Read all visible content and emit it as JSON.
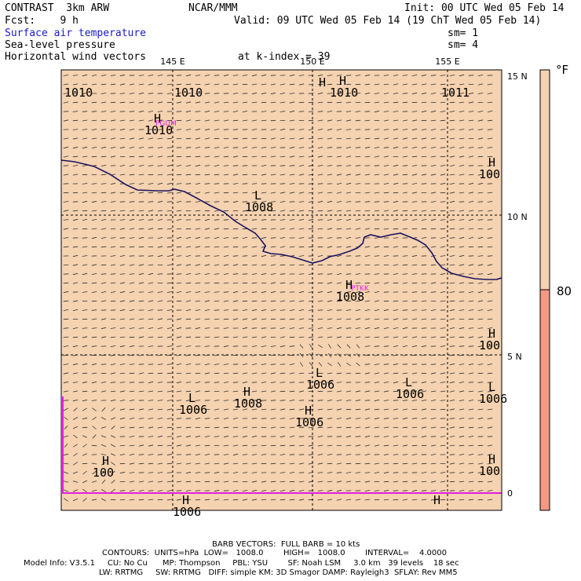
{
  "header": {
    "model": "CONTRAST  3km ARW",
    "center": "NCAR/MMM",
    "init": "Init: 00 UTC Wed 05 Feb 14",
    "fcst": "Fcst:    9 h",
    "valid": "Valid: 09 UTC Wed 05 Feb 14 (19 ChT Wed 05 Feb 14)",
    "field1": "Surface air temperature",
    "field2": "Sea-level pressure",
    "field3": "Horizontal wind vectors",
    "sm1": "sm= 1",
    "sm2": "sm= 4",
    "k_index": "at k-index = 39"
  },
  "map": {
    "lon_labels": [
      "145 E",
      "150 E",
      "155 E"
    ],
    "lat_labels": [
      "15 N",
      "10 N",
      "5 N",
      "0"
    ],
    "pressure_systems": [
      {
        "type": "",
        "value": "1010"
      },
      {
        "type": "",
        "value": "1010"
      },
      {
        "type": "H",
        "value": "1010"
      },
      {
        "type": "",
        "value": "1011"
      },
      {
        "type": "H",
        "value": "1010"
      },
      {
        "type": "H",
        "value": "100"
      },
      {
        "type": "L",
        "value": "1008"
      },
      {
        "type": "H",
        "value": "1008"
      },
      {
        "type": "H",
        "value": "100"
      },
      {
        "type": "L",
        "value": "1006"
      },
      {
        "type": "L",
        "value": "1006"
      },
      {
        "type": "L",
        "value": "1006"
      },
      {
        "type": "H",
        "value": "1008"
      },
      {
        "type": "H",
        "value": "1006"
      },
      {
        "type": "L",
        "value": "1006"
      },
      {
        "type": "H",
        "value": "100"
      },
      {
        "type": "H",
        "value": "100"
      },
      {
        "type": "H",
        "value": "1006"
      },
      {
        "type": "H",
        "value": ""
      },
      {
        "type": "H",
        "value": ""
      }
    ],
    "stations": [
      "PGUM",
      "PTKK"
    ],
    "colors": {
      "land_fill": "#f5d2b0",
      "coast": "#1a1460",
      "station": "#e020e0",
      "grid": "#000000"
    }
  },
  "colorbar": {
    "unit": "°F",
    "label": "80",
    "colors": [
      "#f5d2b0",
      "#f29a82"
    ]
  },
  "footer": {
    "line1": "BARB VECTORS:  FULL BARB = 10 kts",
    "line2": "CONTOURS:  UNITS=hPa  LOW=   1008.0        HIGH=   1008.0        INTERVAL=    4.0000",
    "line3": "Model Info: V3.5.1     CU: No Cu      MP: Thompson     PBL: YSU        SF: Noah LSM     3.0 km   39 levels    18 sec",
    "line4": "LW: RRTMG     SW: RRTMG   DIFF: simple KM: 3D Smagor DAMP: Rayleigh3  SFLAY: Rev MM5"
  }
}
